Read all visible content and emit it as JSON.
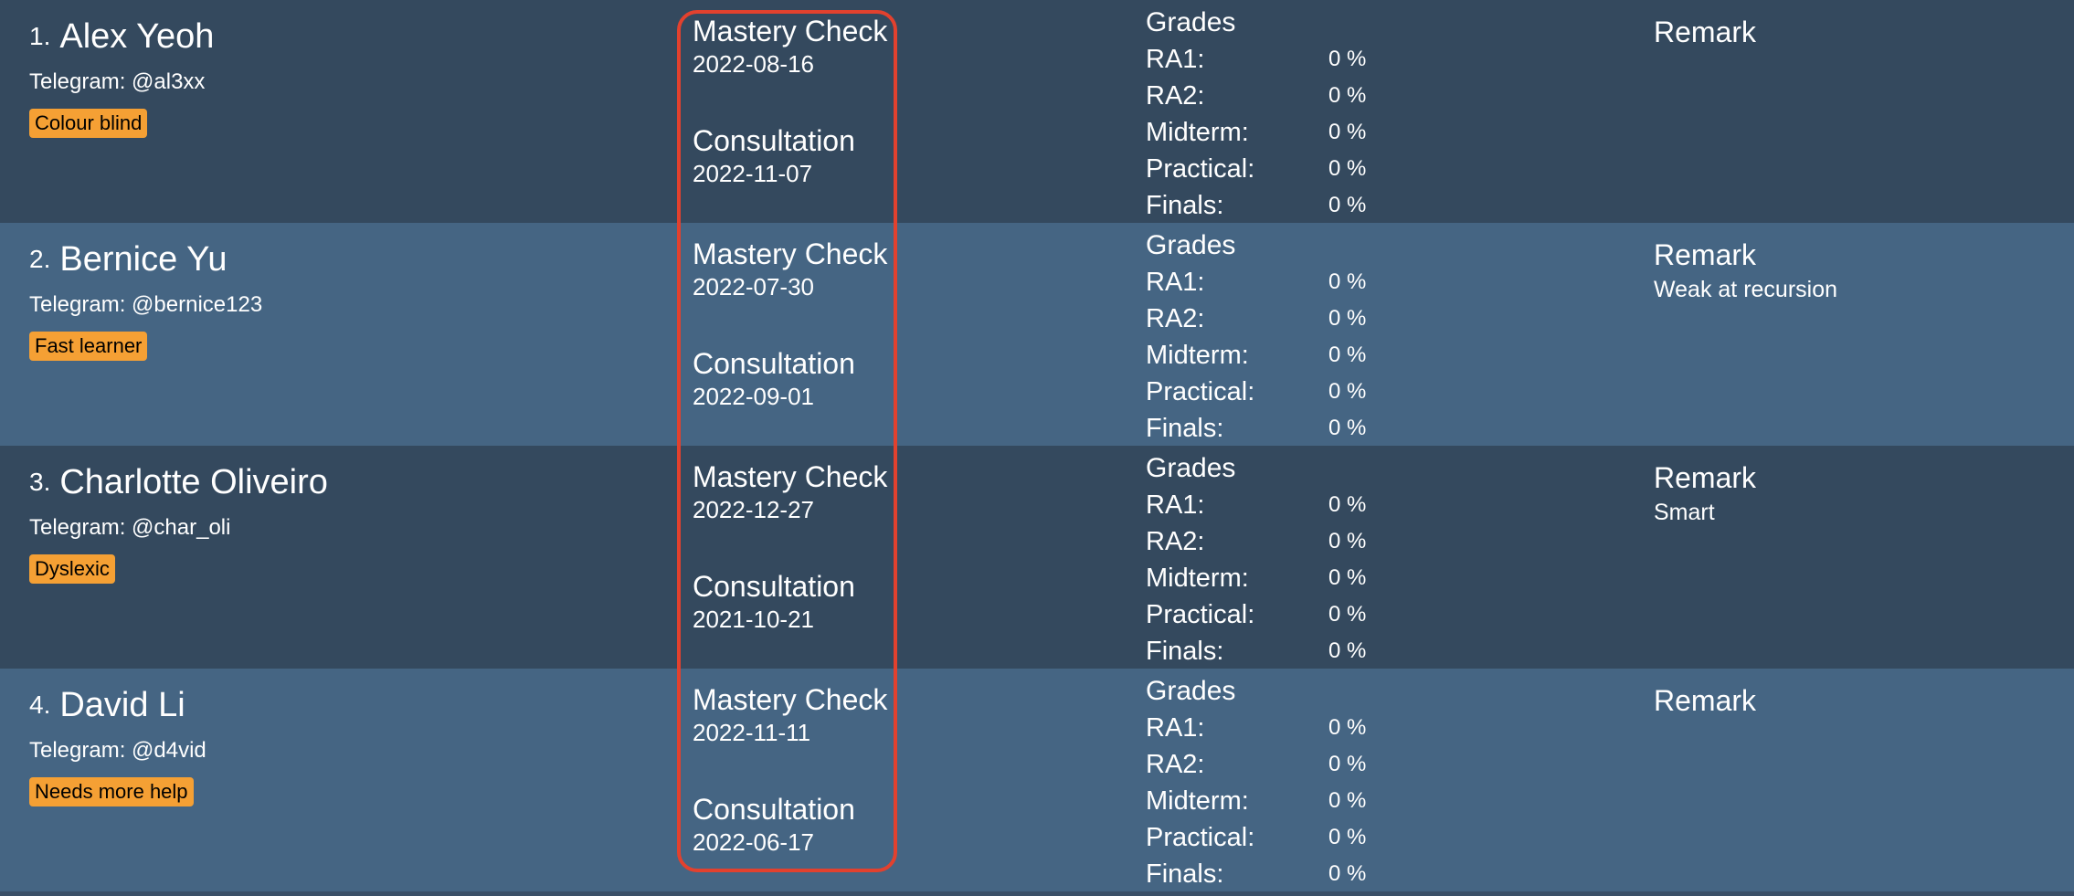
{
  "labels": {
    "telegram_prefix": "Telegram: ",
    "mastery_check": "Mastery Check",
    "consultation": "Consultation",
    "grades": "Grades",
    "remark": "Remark",
    "grade_names": [
      "RA1:",
      "RA2:",
      "Midterm:",
      "Practical:",
      "Finals:"
    ]
  },
  "students": [
    {
      "index": "1.",
      "name": "Alex Yeoh",
      "telegram": "Telegram: @al3xx",
      "tag": "Colour blind",
      "mastery_check_date": "2022-08-16",
      "consultation_date": "2022-11-07",
      "grades": [
        "0 %",
        "0 %",
        "0 %",
        "0 %",
        "0 %"
      ],
      "remark": ""
    },
    {
      "index": "2.",
      "name": "Bernice Yu",
      "telegram": "Telegram: @bernice123",
      "tag": "Fast learner",
      "mastery_check_date": "2022-07-30",
      "consultation_date": "2022-09-01",
      "grades": [
        "0 %",
        "0 %",
        "0 %",
        "0 %",
        "0 %"
      ],
      "remark": "Weak at recursion"
    },
    {
      "index": "3.",
      "name": "Charlotte Oliveiro",
      "telegram": "Telegram: @char_oli",
      "tag": "Dyslexic",
      "mastery_check_date": "2022-12-27",
      "consultation_date": "2021-10-21",
      "grades": [
        "0 %",
        "0 %",
        "0 %",
        "0 %",
        "0 %"
      ],
      "remark": "Smart"
    },
    {
      "index": "4.",
      "name": "David Li",
      "telegram": "Telegram: @d4vid",
      "tag": "Needs more help",
      "mastery_check_date": "2022-11-11",
      "consultation_date": "2022-06-17",
      "grades": [
        "0 %",
        "0 %",
        "0 %",
        "0 %",
        "0 %"
      ],
      "remark": ""
    }
  ],
  "colors": {
    "card_odd": "#34495e",
    "card_even": "#456583",
    "tag_background": "#f5a034",
    "highlight_border": "#e2412e"
  }
}
